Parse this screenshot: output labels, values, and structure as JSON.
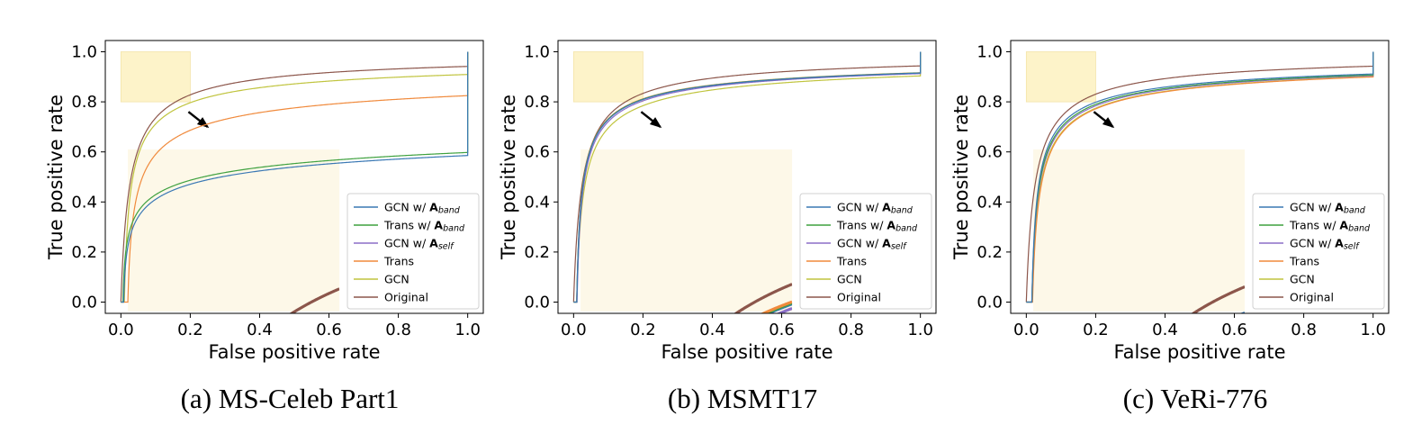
{
  "colors": {
    "GCN w/ A_band": "#3a78b4",
    "Trans w/ A_band": "#3fa13f",
    "GCN w/ A_self": "#8b6fc7",
    "Trans": "#f08a3c",
    "GCN": "#c0c43e",
    "Original": "#8c564b",
    "zoom_box": "#fdf3c9",
    "inset_bg": "#fdf8e8",
    "arrow": "#000000"
  },
  "chart_data": [
    {
      "type": "line",
      "caption": "(a) MS-Celeb Part1",
      "xlabel": "False positive rate",
      "ylabel": "True positive rate",
      "xlim": [
        0.0,
        1.0
      ],
      "ylim": [
        0.0,
        1.0
      ],
      "xticks": [
        "0.0",
        "0.2",
        "0.4",
        "0.6",
        "0.8",
        "1.0"
      ],
      "yticks": [
        "0.0",
        "0.2",
        "0.4",
        "0.6",
        "0.8",
        "1.0"
      ],
      "grid": false,
      "legend_position": "lower-right",
      "zoom_region": {
        "x": [
          0.0,
          0.2
        ],
        "y": [
          0.8,
          1.0
        ]
      },
      "series": [
        {
          "name": "GCN w/ A_band",
          "params": {
            "start": 0.008,
            "p": 0.15,
            "r": 0.0028
          }
        },
        {
          "name": "Trans w/ A_band",
          "params": {
            "start": 0.006,
            "p": 0.15,
            "r": 0.0023
          }
        },
        {
          "name": "Trans",
          "params": {
            "start": 0.02,
            "p": 0.35,
            "r": 0.0068
          }
        },
        {
          "name": "GCN",
          "params": {
            "start": 0.01,
            "p": 0.5,
            "r": 0.0082
          }
        },
        {
          "name": "Original",
          "params": {
            "start": 0.0,
            "p": 0.7,
            "r": 0.0176
          }
        }
      ]
    },
    {
      "type": "line",
      "caption": "(b) MSMT17",
      "xlabel": "False positive rate",
      "ylabel": "True positive rate",
      "xlim": [
        0.0,
        1.0
      ],
      "ylim": [
        0.0,
        1.0
      ],
      "xticks": [
        "0.0",
        "0.2",
        "0.4",
        "0.6",
        "0.8",
        "1.0"
      ],
      "yticks": [
        "0.0",
        "0.2",
        "0.4",
        "0.6",
        "0.8",
        "1.0"
      ],
      "grid": false,
      "legend_position": "lower-right",
      "zoom_region": {
        "x": [
          0.0,
          0.2
        ],
        "y": [
          0.8,
          1.0
        ]
      },
      "series": [
        {
          "name": "GCN w/ A_band",
          "params": {
            "start": 0.009,
            "p": 0.5,
            "r": 0.0072
          }
        },
        {
          "name": "Trans w/ A_band",
          "params": {
            "start": 0.009,
            "p": 0.5,
            "r": 0.0071
          }
        },
        {
          "name": "GCN w/ A_self",
          "params": {
            "start": 0.01,
            "p": 0.5,
            "r": 0.0076
          }
        },
        {
          "name": "Trans",
          "params": {
            "start": 0.009,
            "p": 0.5,
            "r": 0.007
          }
        },
        {
          "name": "GCN",
          "params": {
            "start": 0.009,
            "p": 0.5,
            "r": 0.0093
          }
        },
        {
          "name": "Original",
          "params": {
            "start": 0.0,
            "p": 0.7,
            "r": 0.0167
          }
        }
      ]
    },
    {
      "type": "line",
      "caption": "(c) VeRi-776",
      "xlabel": "False positive rate",
      "ylabel": "True positive rate",
      "xlim": [
        0.0,
        1.0
      ],
      "ylim": [
        0.0,
        1.0
      ],
      "xticks": [
        "0.0",
        "0.2",
        "0.4",
        "0.6",
        "0.8",
        "1.0"
      ],
      "yticks": [
        "0.0",
        "0.2",
        "0.4",
        "0.6",
        "0.8",
        "1.0"
      ],
      "grid": false,
      "legend_position": "lower-right",
      "zoom_region": {
        "x": [
          0.0,
          0.2
        ],
        "y": [
          0.8,
          1.0
        ]
      },
      "series": [
        {
          "name": "GCN w/ A_band",
          "params": {
            "start": 0.016,
            "p": 0.5,
            "r": 0.0078
          }
        },
        {
          "name": "Trans w/ A_band",
          "params": {
            "start": 0.016,
            "p": 0.5,
            "r": 0.0085
          }
        },
        {
          "name": "GCN w/ A_self",
          "params": {
            "start": 0.016,
            "p": 0.5,
            "r": 0.009
          }
        },
        {
          "name": "Trans",
          "params": {
            "start": 0.018,
            "p": 0.5,
            "r": 0.01
          }
        },
        {
          "name": "GCN",
          "params": {
            "start": 0.017,
            "p": 0.5,
            "r": 0.0098
          }
        },
        {
          "name": "Original",
          "params": {
            "start": 0.0,
            "p": 0.7,
            "r": 0.0172
          }
        }
      ]
    }
  ],
  "legend_labels": [
    {
      "key": "GCN w/ A_band",
      "base": "GCN w/ ",
      "bold": "A",
      "sub": "band"
    },
    {
      "key": "Trans w/ A_band",
      "base": "Trans w/ ",
      "bold": "A",
      "sub": "band"
    },
    {
      "key": "GCN w/ A_self",
      "base": "GCN w/ ",
      "bold": "A",
      "sub": "self"
    },
    {
      "key": "Trans",
      "base": "Trans",
      "bold": "",
      "sub": ""
    },
    {
      "key": "GCN",
      "base": "GCN",
      "bold": "",
      "sub": ""
    },
    {
      "key": "Original",
      "base": "Original",
      "bold": "",
      "sub": ""
    }
  ]
}
